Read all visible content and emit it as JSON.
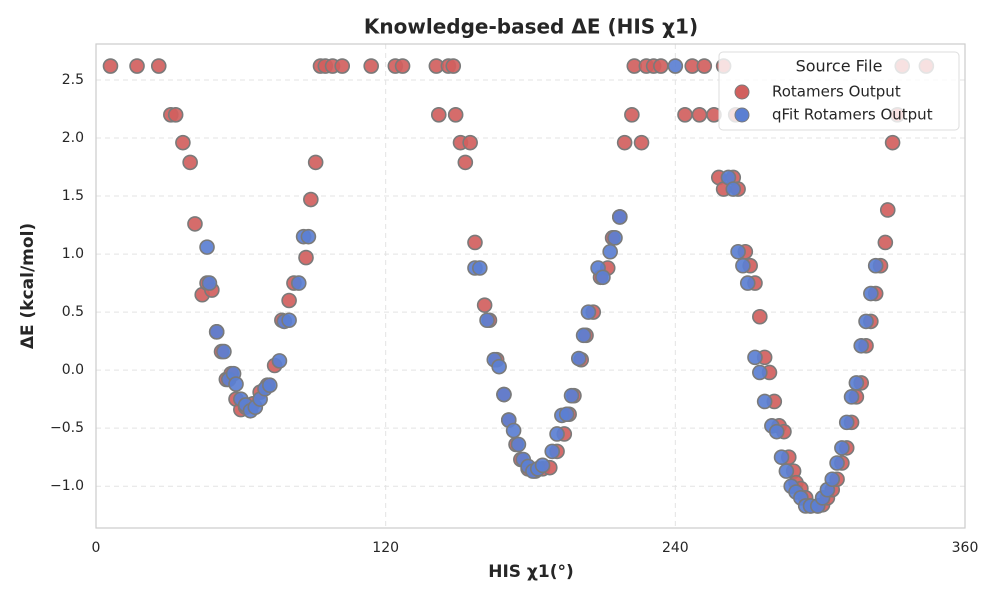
{
  "chart_data": {
    "type": "scatter",
    "title": "Knowledge-based ΔE (HIS χ1)",
    "x_label": "HIS χ1(°)",
    "y_label": "ΔE (kcal/mol)",
    "xlim": [
      0,
      360
    ],
    "xticks": [
      0,
      120,
      240,
      360
    ],
    "ylim": [
      -1.36,
      2.81
    ],
    "yticks": [
      {
        "value": -1,
        "label": "−1.0"
      },
      {
        "value": -0.5,
        "label": "−0.5"
      },
      {
        "value": 0,
        "label": "0.0"
      },
      0.5,
      {
        "value": 1,
        "label": "1.0"
      },
      1.5,
      {
        "value": 2,
        "label": "2.0"
      },
      2.5
    ],
    "grid": true,
    "legend_title": "Source File",
    "legend_position": "upper-right",
    "series": [
      {
        "name": "Rotamers Output",
        "color": "#d1605e",
        "x": [
          6,
          17,
          26,
          31,
          33,
          36,
          39,
          41,
          44,
          46,
          48,
          50,
          52,
          54,
          56,
          58,
          60,
          62,
          65,
          68,
          71,
          74,
          77,
          80,
          82,
          87,
          89,
          91,
          93,
          95,
          98,
          102,
          114,
          124,
          127,
          141,
          142,
          146,
          148,
          149,
          151,
          153,
          155,
          157,
          161,
          163,
          166,
          169,
          171,
          174,
          176,
          179,
          182,
          185,
          188,
          191,
          194,
          196,
          198,
          201,
          203,
          206,
          209,
          212,
          214,
          217,
          219,
          222,
          223,
          226,
          228,
          231,
          234,
          244,
          247,
          250,
          252,
          256,
          260,
          265,
          258,
          260,
          264,
          266,
          269,
          271,
          273,
          275,
          277,
          279,
          281,
          283,
          285,
          287,
          289,
          290,
          292,
          294,
          296,
          299,
          301,
          303,
          305,
          307,
          309,
          311,
          313,
          315,
          317,
          319,
          321,
          323,
          325,
          327,
          328,
          330,
          332,
          334,
          344
        ],
        "values": [
          2.62,
          2.62,
          2.62,
          2.2,
          2.2,
          1.96,
          1.79,
          1.26,
          0.65,
          0.75,
          0.69,
          0.33,
          0.16,
          -0.08,
          -0.03,
          -0.25,
          -0.34,
          -0.32,
          -0.29,
          -0.19,
          -0.13,
          0.04,
          0.43,
          0.6,
          0.75,
          0.97,
          1.47,
          1.79,
          2.62,
          2.62,
          2.62,
          2.62,
          2.62,
          2.62,
          2.62,
          2.62,
          2.2,
          2.62,
          2.62,
          2.2,
          1.96,
          1.79,
          1.96,
          1.1,
          0.56,
          0.43,
          0.09,
          -0.21,
          -0.43,
          -0.64,
          -0.77,
          -0.85,
          -0.87,
          -0.85,
          -0.84,
          -0.7,
          -0.55,
          -0.38,
          -0.22,
          0.09,
          0.3,
          0.5,
          0.8,
          0.88,
          1.14,
          1.32,
          1.96,
          2.2,
          2.62,
          1.96,
          2.62,
          2.62,
          2.62,
          2.2,
          2.62,
          2.2,
          2.62,
          2.2,
          2.62,
          2.2,
          1.66,
          1.56,
          1.66,
          1.56,
          1.02,
          0.9,
          0.75,
          0.46,
          0.11,
          -0.02,
          -0.27,
          -0.48,
          -0.53,
          -0.75,
          -0.87,
          -0.97,
          -1.02,
          -1.1,
          -1.17,
          -1.17,
          -1.16,
          -1.1,
          -1.03,
          -0.94,
          -0.8,
          -0.67,
          -0.45,
          -0.23,
          -0.11,
          0.21,
          0.42,
          0.66,
          0.9,
          1.1,
          1.38,
          1.96,
          2.2,
          2.62,
          2.62
        ]
      },
      {
        "name": "qFit Rotamers Output",
        "color": "#5b7fd2",
        "x": [
          46,
          47,
          50,
          53,
          55,
          57,
          58,
          60,
          62,
          64,
          66,
          68,
          70,
          72,
          76,
          78,
          80,
          84,
          86,
          88,
          157,
          159,
          162,
          165,
          167,
          169,
          171,
          173,
          175,
          177,
          179,
          181,
          183,
          185,
          189,
          191,
          193,
          195,
          197,
          200,
          202,
          204,
          208,
          210,
          213,
          215,
          217,
          240,
          262,
          264,
          266,
          268,
          270,
          273,
          275,
          277,
          280,
          282,
          284,
          286,
          288,
          290,
          292,
          294,
          296,
          299,
          301,
          303,
          305,
          307,
          309,
          311,
          313,
          315,
          317,
          319,
          321,
          323
        ],
        "values": [
          1.06,
          0.75,
          0.33,
          0.16,
          -0.08,
          -0.03,
          -0.12,
          -0.25,
          -0.3,
          -0.35,
          -0.32,
          -0.25,
          -0.16,
          -0.13,
          0.08,
          0.42,
          0.43,
          0.75,
          1.15,
          1.15,
          0.88,
          0.88,
          0.43,
          0.09,
          0.03,
          -0.21,
          -0.43,
          -0.52,
          -0.64,
          -0.77,
          -0.83,
          -0.87,
          -0.85,
          -0.82,
          -0.7,
          -0.55,
          -0.39,
          -0.38,
          -0.22,
          0.1,
          0.3,
          0.5,
          0.88,
          0.8,
          1.02,
          1.14,
          1.32,
          2.62,
          1.66,
          1.56,
          1.02,
          0.9,
          0.75,
          0.11,
          -0.02,
          -0.27,
          -0.48,
          -0.53,
          -0.75,
          -0.87,
          -1.0,
          -1.05,
          -1.1,
          -1.17,
          -1.17,
          -1.17,
          -1.1,
          -1.03,
          -0.94,
          -0.8,
          -0.67,
          -0.45,
          -0.23,
          -0.11,
          0.21,
          0.42,
          0.66,
          0.9
        ]
      }
    ]
  }
}
